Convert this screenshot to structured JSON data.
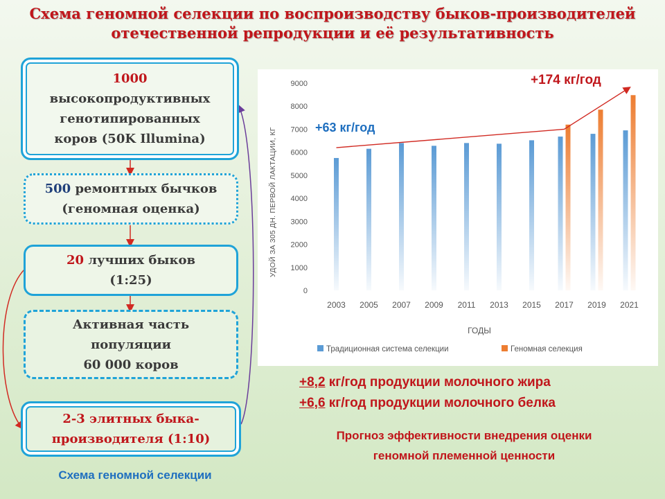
{
  "title": {
    "line1": "Схема геномной селекции по воспроизводству быков-производителей",
    "line2": "отечественной репродукции и её результативность"
  },
  "scheme": {
    "box1": {
      "number": "1000",
      "line2": "высокопродуктивных",
      "line3": "генотипированных",
      "line4": "коров (50K Illumina)"
    },
    "box2": {
      "number": "500",
      "line1_rest": " ремонтных бычков",
      "line2": "(геномная оценка)"
    },
    "box3": {
      "number": "20",
      "line1_rest": " лучших быков",
      "line2": "(1:25)"
    },
    "box4": {
      "line1": "Активная часть",
      "line2": "популяции",
      "line3": "60 000 коров"
    },
    "box5": {
      "number": "2-3",
      "line1_rest": " элитных быка-",
      "line2": "производителя (1:10)"
    },
    "caption": "Схема геномной селекции"
  },
  "annotations": {
    "left_rate": "+63 кг/год",
    "right_rate": "+174 кг/год"
  },
  "gains": {
    "fat_value": "+8,2",
    "fat_text": " кг/год продукции молочного жира",
    "protein_value": "+6,6",
    "protein_text": " кг/год продукции молочного белка"
  },
  "forecast": {
    "line1": "Прогноз эффективности внедрения оценки",
    "line2": "геномной племенной ценности"
  },
  "colors": {
    "traditional": "#5b9bd5",
    "genomic": "#ed7d31",
    "accent_red": "#c0161b",
    "accent_blue": "#1f6fbf",
    "box_border": "#1fa3d8"
  },
  "chart_data": {
    "type": "bar",
    "categories": [
      "2003",
      "2005",
      "2007",
      "2009",
      "2011",
      "2013",
      "2015",
      "2017",
      "2019",
      "2021"
    ],
    "series": [
      {
        "name": "Традиционная система селекции",
        "values": [
          5750,
          6150,
          6400,
          6280,
          6400,
          6370,
          6520,
          6680,
          6800,
          6950
        ]
      },
      {
        "name": "Геномная селекция",
        "values": [
          null,
          null,
          null,
          null,
          null,
          null,
          null,
          7200,
          7850,
          8480
        ]
      }
    ],
    "trend_line": {
      "points": [
        [
          "2003",
          6200
        ],
        [
          "2017",
          7000
        ],
        [
          "2021",
          8800
        ]
      ]
    },
    "ylim": [
      0,
      9000
    ],
    "yticks": [
      "0",
      "1000",
      "2000",
      "3000",
      "4000",
      "5000",
      "6000",
      "7000",
      "8000",
      "9000"
    ],
    "ylabel": "УДОЙ ЗА 305 ДН. ПЕРВОЙ ЛАКТАЦИИ, КГ",
    "xlabel": "ГОДЫ",
    "legend": "bottom",
    "grid": false
  }
}
